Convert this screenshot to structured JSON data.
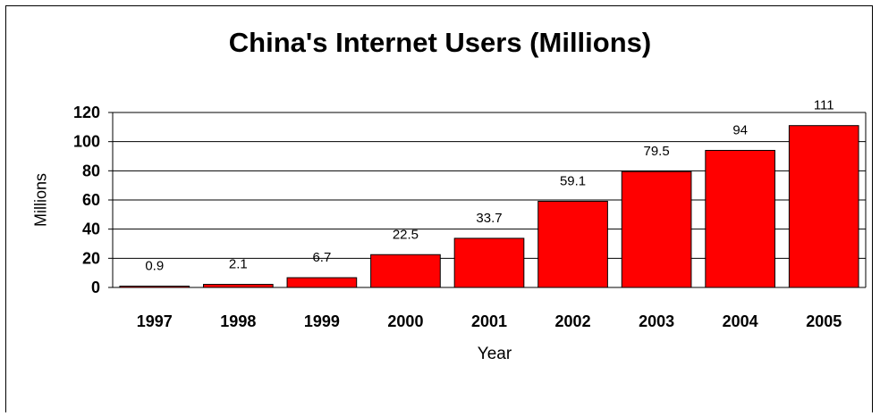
{
  "chart_data": {
    "type": "bar",
    "title": "China's Internet Users (Millions)",
    "xlabel": "Year",
    "ylabel": "Millions",
    "categories": [
      "1997",
      "1998",
      "1999",
      "2000",
      "2001",
      "2002",
      "2003",
      "2004",
      "2005"
    ],
    "values": [
      0.9,
      2.1,
      6.7,
      22.5,
      33.7,
      59.1,
      79.5,
      94,
      111
    ],
    "value_labels": [
      "0.9",
      "2.1",
      "6.7",
      "22.5",
      "33.7",
      "59.1",
      "79.5",
      "94",
      "111"
    ],
    "yticks": [
      0,
      20,
      40,
      60,
      80,
      100,
      120
    ],
    "ylim": [
      0,
      120
    ],
    "grid": true,
    "legend": "none",
    "bar_color": "#ff0000"
  }
}
